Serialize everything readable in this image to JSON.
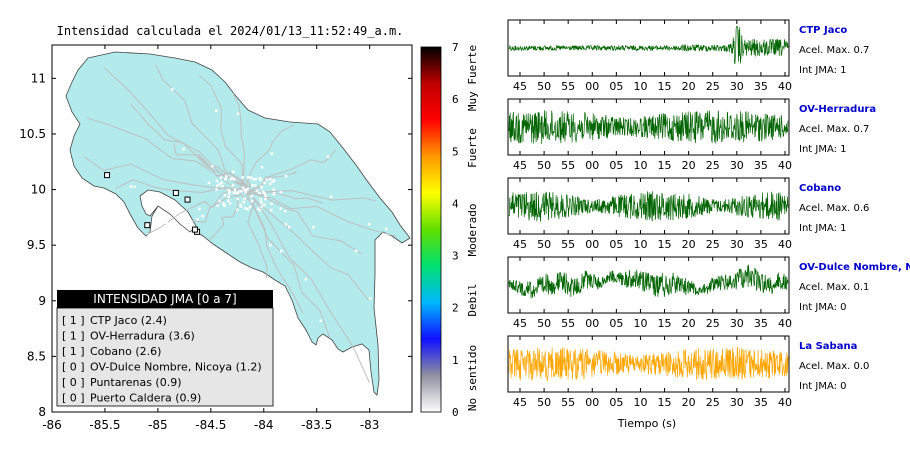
{
  "title": "Intensidad calculada el 2024/01/13_11:52:49_a.m.",
  "map": {
    "xticks": [
      "-86",
      "-85.5",
      "-85",
      "-84.5",
      "-84",
      "-83.5",
      "-83"
    ],
    "yticks": [
      "8",
      "8.5",
      "9",
      "9.5",
      "10",
      "10.5",
      "11"
    ],
    "xlim": [
      -86,
      -82.6
    ],
    "ylim": [
      8,
      11.3
    ],
    "land_color": "#b3eaec",
    "road_color": "#bfbfbf",
    "stations": [
      {
        "id": "CTP Jaco",
        "lon": -84.63,
        "lat": 9.62,
        "int": 1
      },
      {
        "id": "OV-Herradura",
        "lon": -84.65,
        "lat": 9.64,
        "int": 1
      },
      {
        "id": "Cobano",
        "lon": -85.1,
        "lat": 9.68,
        "int": 1
      },
      {
        "id": "OV-Dulce Nombre, Nicoya",
        "lon": -85.48,
        "lat": 10.13,
        "int": 0
      },
      {
        "id": "Puntarenas",
        "lon": -84.83,
        "lat": 9.97,
        "int": 0
      },
      {
        "id": "Puerto Caldera",
        "lon": -84.72,
        "lat": 9.91,
        "int": 0
      }
    ]
  },
  "legend": {
    "title": "INTENSIDAD JMA [0 a 7]",
    "items": [
      {
        "level": "[ 1 ]",
        "label": "CTP Jaco (2.4)"
      },
      {
        "level": "[ 1 ]",
        "label": "OV-Herradura (3.6)"
      },
      {
        "level": "[ 1 ]",
        "label": "Cobano (2.6)"
      },
      {
        "level": "[ 0 ]",
        "label": "OV-Dulce Nombre, Nicoya (1.2)"
      },
      {
        "level": "[ 0 ]",
        "label": "Puntarenas (0.9)"
      },
      {
        "level": "[ 0 ]",
        "label": "Puerto Caldera (0.9)"
      }
    ]
  },
  "colorbar": {
    "ticks": [
      "0",
      "1",
      "2",
      "3",
      "4",
      "5",
      "6",
      "7"
    ],
    "range": [
      0,
      7
    ],
    "labels": [
      "No sentido",
      "Debil",
      "Moderado",
      "Fuerte",
      "Muy Fuerte"
    ],
    "colors": [
      "#ffffff",
      "#9090a0",
      "#1010ff",
      "#00b8ff",
      "#00e070",
      "#60e000",
      "#ffff00",
      "#ff9900",
      "#ff0000",
      "#c00000",
      "#000000"
    ]
  },
  "chart_data": [
    {
      "type": "line",
      "name": "CTP Jaco",
      "acel_label": "Acel. Max. 0.7",
      "int_label": "Int JMA: 1",
      "color": "#006400",
      "xticks": [
        "45",
        "50",
        "55",
        "00",
        "05",
        "10",
        "15",
        "20",
        "25",
        "30",
        "35",
        "40"
      ],
      "profile": "burst",
      "amplitude": 0.7
    },
    {
      "type": "line",
      "name": "OV-Herradura",
      "acel_label": "Acel. Max. 0.7",
      "int_label": "Int JMA: 1",
      "color": "#006400",
      "xticks": [
        "45",
        "50",
        "55",
        "00",
        "05",
        "10",
        "15",
        "20",
        "25",
        "30",
        "35",
        "40"
      ],
      "profile": "noise",
      "amplitude": 0.7
    },
    {
      "type": "line",
      "name": "Cobano",
      "acel_label": "Acel. Max. 0.6",
      "int_label": "Int JMA: 1",
      "color": "#006400",
      "xticks": [
        "45",
        "50",
        "55",
        "00",
        "05",
        "10",
        "15",
        "20",
        "25",
        "30",
        "35",
        "40"
      ],
      "profile": "mixed",
      "amplitude": 0.6
    },
    {
      "type": "line",
      "name": "OV-Dulce Nombre, Nicoya",
      "acel_label": "Acel. Max. 0.1",
      "int_label": "Int JMA: 0",
      "color": "#006400",
      "xticks": [
        "45",
        "50",
        "55",
        "00",
        "05",
        "10",
        "15",
        "20",
        "25",
        "30",
        "35",
        "40"
      ],
      "profile": "wander",
      "amplitude": 0.1
    },
    {
      "type": "line",
      "name": "La Sabana",
      "acel_label": "Acel. Max. 0.0",
      "int_label": "Int JMA: 0",
      "color": "#ffa500",
      "xticks": [
        "45",
        "50",
        "55",
        "00",
        "05",
        "10",
        "15",
        "20",
        "25",
        "30",
        "35",
        "40"
      ],
      "profile": "noise",
      "amplitude": 0.0
    }
  ],
  "time_axis_label": "Tiempo (s)"
}
